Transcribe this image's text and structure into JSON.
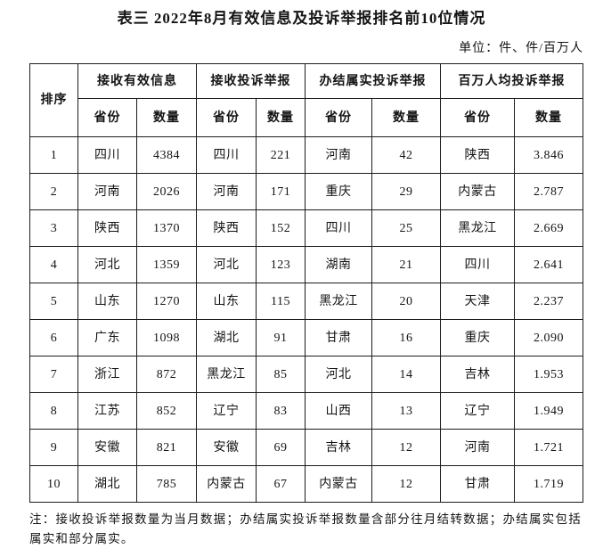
{
  "title": "表三 2022年8月有效信息及投诉举报排名前10位情况",
  "unit_label": "单位：件、件/百万人",
  "table": {
    "rank_header": "排序",
    "groups": [
      {
        "label": "接收有效信息",
        "sub": [
          "省份",
          "数量"
        ]
      },
      {
        "label": "接收投诉举报",
        "sub": [
          "省份",
          "数量"
        ]
      },
      {
        "label": "办结属实投诉举报",
        "sub": [
          "省份",
          "数量"
        ]
      },
      {
        "label": "百万人均投诉举报",
        "sub": [
          "省份",
          "数量"
        ]
      }
    ],
    "rows": [
      {
        "rank": "1",
        "cells": [
          "四川",
          "4384",
          "四川",
          "221",
          "河南",
          "42",
          "陕西",
          "3.846"
        ]
      },
      {
        "rank": "2",
        "cells": [
          "河南",
          "2026",
          "河南",
          "171",
          "重庆",
          "29",
          "内蒙古",
          "2.787"
        ]
      },
      {
        "rank": "3",
        "cells": [
          "陕西",
          "1370",
          "陕西",
          "152",
          "四川",
          "25",
          "黑龙江",
          "2.669"
        ]
      },
      {
        "rank": "4",
        "cells": [
          "河北",
          "1359",
          "河北",
          "123",
          "湖南",
          "21",
          "四川",
          "2.641"
        ]
      },
      {
        "rank": "5",
        "cells": [
          "山东",
          "1270",
          "山东",
          "115",
          "黑龙江",
          "20",
          "天津",
          "2.237"
        ]
      },
      {
        "rank": "6",
        "cells": [
          "广东",
          "1098",
          "湖北",
          "91",
          "甘肃",
          "16",
          "重庆",
          "2.090"
        ]
      },
      {
        "rank": "7",
        "cells": [
          "浙江",
          "872",
          "黑龙江",
          "85",
          "河北",
          "14",
          "吉林",
          "1.953"
        ]
      },
      {
        "rank": "8",
        "cells": [
          "江苏",
          "852",
          "辽宁",
          "83",
          "山西",
          "13",
          "辽宁",
          "1.949"
        ]
      },
      {
        "rank": "9",
        "cells": [
          "安徽",
          "821",
          "安徽",
          "69",
          "吉林",
          "12",
          "河南",
          "1.721"
        ]
      },
      {
        "rank": "10",
        "cells": [
          "湖北",
          "785",
          "内蒙古",
          "67",
          "内蒙古",
          "12",
          "甘肃",
          "1.719"
        ]
      }
    ]
  },
  "note": "注：接收投诉举报数量为当月数据；办结属实投诉举报数量含部分往月结转数据；办结属实包括属实和部分属实。",
  "colors": {
    "text": "#141414",
    "border": "#1c1c1c",
    "background": "#ffffff"
  }
}
